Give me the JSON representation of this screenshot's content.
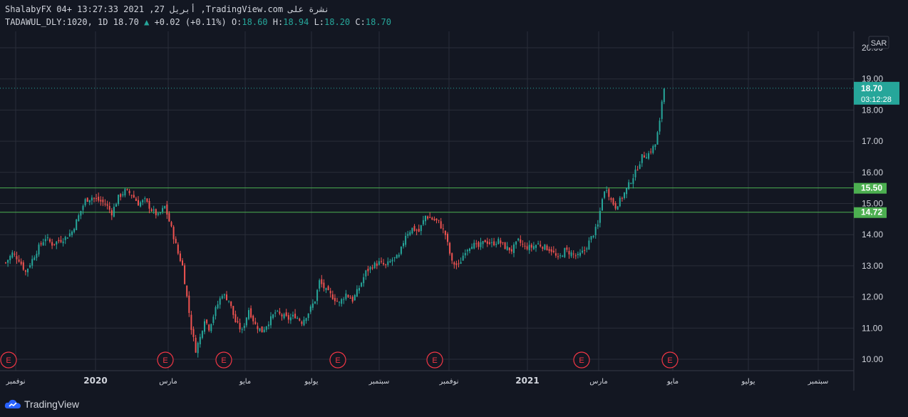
{
  "header": {
    "line1": "ShalabyFX 04+ 13:27:33 2021 ,27 أبريل ,TradingView.com نشرة على",
    "symbol": "TADAWUL_DLY:1020, 1D",
    "last": "18.70",
    "change": "+0.02 (+0.11%)",
    "o_label": "O:",
    "o_value": "18.60",
    "h_label": "H:",
    "h_value": "18.94",
    "l_label": "L:",
    "l_value": "18.20",
    "c_label": "C:",
    "c_value": "18.70"
  },
  "currency": "SAR",
  "price_tag": {
    "price": "18.70",
    "countdown": "03:12:28"
  },
  "levels": [
    {
      "value": 15.5,
      "label": "15.50"
    },
    {
      "value": 14.72,
      "label": "14.72"
    }
  ],
  "earnings_markers": [
    "E",
    "E",
    "E",
    "E",
    "E",
    "E",
    "E"
  ],
  "footer": {
    "brand": "TradingView"
  },
  "colors": {
    "up": "#26a69a",
    "down": "#ef5350",
    "level": "#4caf50",
    "bg": "#131722",
    "grid": "#2a2e39",
    "earnings": "#f23645"
  },
  "chart_data": {
    "type": "candlestick",
    "y_ticks": [
      "10.00",
      "11.00",
      "12.00",
      "13.00",
      "14.00",
      "15.00",
      "16.00",
      "17.00",
      "18.00",
      "19.00",
      "20.00"
    ],
    "ylim": [
      9.7,
      20.3
    ],
    "x_ticks": [
      {
        "label": "نوفمبر",
        "bold": false
      },
      {
        "label": "2020",
        "bold": true
      },
      {
        "label": "مارس",
        "bold": false
      },
      {
        "label": "مايو",
        "bold": false
      },
      {
        "label": "يوليو",
        "bold": false
      },
      {
        "label": "سبتمبر",
        "bold": false
      },
      {
        "label": "نوفمبر",
        "bold": false
      },
      {
        "label": "2021",
        "bold": true
      },
      {
        "label": "مارس",
        "bold": false
      },
      {
        "label": "مايو",
        "bold": false
      },
      {
        "label": "يوليو",
        "bold": false
      },
      {
        "label": "سبتمبر",
        "bold": false
      }
    ],
    "close_path": [
      [
        0,
        13.1
      ],
      [
        3,
        13.4
      ],
      [
        6,
        13.2
      ],
      [
        9,
        12.8
      ],
      [
        12,
        13.2
      ],
      [
        15,
        13.6
      ],
      [
        18,
        13.9
      ],
      [
        21,
        13.7
      ],
      [
        24,
        13.8
      ],
      [
        27,
        13.9
      ],
      [
        30,
        14.1
      ],
      [
        33,
        14.6
      ],
      [
        36,
        15.1
      ],
      [
        39,
        15.2
      ],
      [
        42,
        15.1
      ],
      [
        45,
        15.0
      ],
      [
        48,
        14.7
      ],
      [
        51,
        15.2
      ],
      [
        54,
        15.4
      ],
      [
        57,
        15.3
      ],
      [
        60,
        15.0
      ],
      [
        63,
        15.1
      ],
      [
        66,
        14.8
      ],
      [
        69,
        14.6
      ],
      [
        72,
        14.9
      ],
      [
        75,
        14.2
      ],
      [
        78,
        13.4
      ],
      [
        80,
        13.0
      ],
      [
        82,
        12.0
      ],
      [
        84,
        11.0
      ],
      [
        86,
        10.3
      ],
      [
        88,
        10.7
      ],
      [
        90,
        11.3
      ],
      [
        92,
        11.0
      ],
      [
        95,
        11.6
      ],
      [
        98,
        12.1
      ],
      [
        101,
        11.9
      ],
      [
        104,
        11.2
      ],
      [
        107,
        10.9
      ],
      [
        110,
        11.6
      ],
      [
        113,
        11.1
      ],
      [
        116,
        10.9
      ],
      [
        119,
        11.2
      ],
      [
        122,
        11.5
      ],
      [
        125,
        11.4
      ],
      [
        128,
        11.3
      ],
      [
        131,
        11.4
      ],
      [
        134,
        11.2
      ],
      [
        137,
        11.5
      ],
      [
        140,
        11.9
      ],
      [
        142,
        12.5
      ],
      [
        145,
        12.2
      ],
      [
        148,
        12.0
      ],
      [
        151,
        11.8
      ],
      [
        154,
        12.1
      ],
      [
        157,
        11.9
      ],
      [
        160,
        12.3
      ],
      [
        163,
        12.8
      ],
      [
        166,
        13.0
      ],
      [
        169,
        13.1
      ],
      [
        172,
        13.0
      ],
      [
        175,
        13.2
      ],
      [
        178,
        13.3
      ],
      [
        181,
        14.0
      ],
      [
        184,
        14.2
      ],
      [
        187,
        14.1
      ],
      [
        190,
        14.6
      ],
      [
        193,
        14.5
      ],
      [
        196,
        14.4
      ],
      [
        199,
        14.0
      ],
      [
        202,
        13.1
      ],
      [
        205,
        13.0
      ],
      [
        208,
        13.5
      ],
      [
        211,
        13.7
      ],
      [
        214,
        13.6
      ],
      [
        217,
        13.8
      ],
      [
        220,
        13.7
      ],
      [
        223,
        13.8
      ],
      [
        226,
        13.6
      ],
      [
        229,
        13.5
      ],
      [
        232,
        13.8
      ],
      [
        235,
        13.6
      ],
      [
        238,
        13.6
      ],
      [
        241,
        13.7
      ],
      [
        244,
        13.6
      ],
      [
        247,
        13.5
      ],
      [
        250,
        13.2
      ],
      [
        253,
        13.5
      ],
      [
        256,
        13.4
      ],
      [
        259,
        13.3
      ],
      [
        262,
        13.5
      ],
      [
        265,
        13.9
      ],
      [
        268,
        14.3
      ],
      [
        270,
        15.2
      ],
      [
        272,
        15.5
      ],
      [
        274,
        15.1
      ],
      [
        276,
        14.9
      ],
      [
        279,
        15.2
      ],
      [
        282,
        15.6
      ],
      [
        285,
        16.0
      ],
      [
        288,
        16.5
      ],
      [
        291,
        16.6
      ],
      [
        294,
        16.9
      ],
      [
        296,
        17.6
      ],
      [
        297,
        18.3
      ],
      [
        298,
        18.7
      ]
    ],
    "x_max_index": 380
  }
}
